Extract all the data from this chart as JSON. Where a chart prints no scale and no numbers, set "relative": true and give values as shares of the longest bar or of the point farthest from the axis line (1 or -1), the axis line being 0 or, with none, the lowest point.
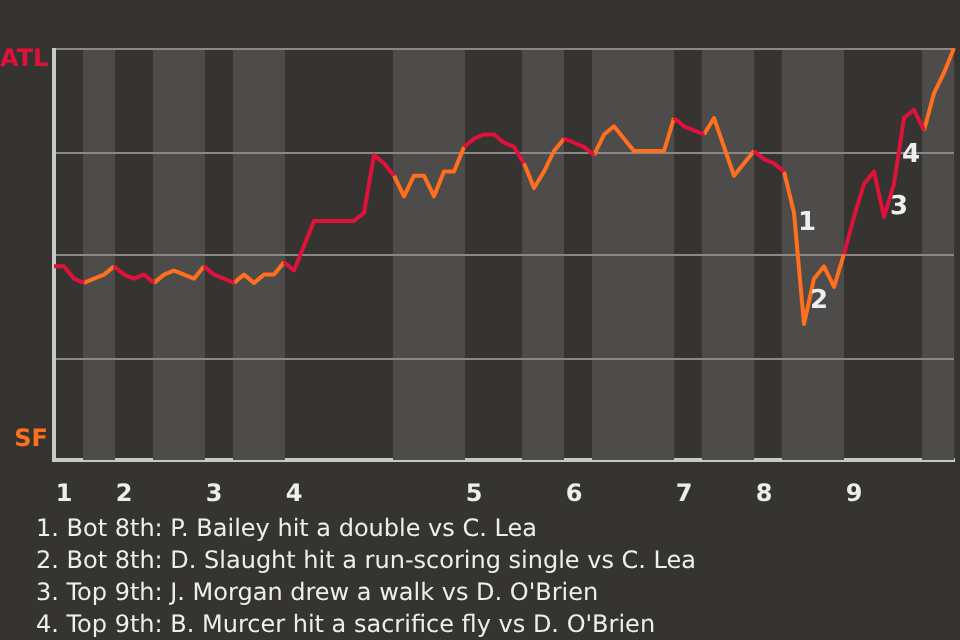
{
  "chart_data": {
    "type": "line",
    "relative": true,
    "categories": [
      null,
      "1",
      null,
      null,
      null,
      null,
      null,
      "2",
      null,
      null,
      null,
      null,
      null,
      null,
      null,
      null,
      "3",
      null,
      null,
      null,
      null,
      null,
      null,
      null,
      "4",
      null,
      null,
      null,
      null,
      null,
      null,
      null,
      null,
      null,
      null,
      null,
      null,
      null,
      null,
      null,
      null,
      null,
      "5",
      null,
      null,
      null,
      null,
      null,
      null,
      null,
      null,
      null,
      "6",
      null,
      null,
      null,
      null,
      null,
      null,
      null,
      null,
      null,
      null,
      "7",
      null,
      null,
      null,
      null,
      null,
      null,
      null,
      "8",
      null,
      null,
      null,
      null,
      null,
      null,
      null,
      null,
      "9",
      null,
      null,
      null,
      null,
      null,
      null,
      null,
      null,
      null,
      null
    ],
    "series": [
      {
        "color": "#e0123c",
        "values": [
          0.47,
          0.47,
          0.44,
          0.43,
          null,
          null,
          0.47,
          0.45,
          0.44,
          0.45,
          0.43,
          null,
          null,
          null,
          null,
          0.47,
          0.45,
          0.44,
          0.43,
          null,
          null,
          null,
          null,
          0.48,
          0.46,
          0.52,
          0.58,
          0.58,
          0.58,
          0.58,
          0.58,
          0.6,
          0.74,
          0.72,
          0.69,
          null,
          null,
          null,
          null,
          null,
          null,
          0.76,
          0.78,
          0.79,
          0.79,
          0.77,
          0.76,
          0.72,
          null,
          null,
          null,
          0.78,
          0.77,
          0.76,
          0.74,
          null,
          null,
          null,
          null,
          null,
          null,
          null,
          0.83,
          0.81,
          0.8,
          0.79,
          null,
          null,
          null,
          null,
          0.75,
          0.73,
          0.72,
          0.7,
          null,
          null,
          null,
          null,
          null,
          0.5,
          0.59,
          0.67,
          0.7,
          0.59,
          0.67,
          0.83,
          0.85,
          0.8,
          null,
          null,
          null
        ]
      },
      {
        "color": "#ff6f1e",
        "values": [
          null,
          null,
          null,
          0.43,
          0.44,
          0.45,
          0.47,
          null,
          null,
          null,
          0.43,
          0.45,
          0.46,
          0.45,
          0.44,
          0.47,
          null,
          null,
          0.43,
          0.45,
          0.43,
          0.45,
          0.45,
          0.48,
          null,
          null,
          null,
          null,
          null,
          null,
          null,
          null,
          null,
          null,
          0.69,
          0.64,
          0.69,
          0.69,
          0.64,
          0.7,
          0.7,
          0.76,
          null,
          null,
          null,
          null,
          null,
          0.72,
          0.66,
          0.7,
          0.75,
          0.78,
          null,
          null,
          0.74,
          0.79,
          0.81,
          0.78,
          0.75,
          0.75,
          0.75,
          0.75,
          0.83,
          null,
          null,
          0.79,
          0.83,
          0.76,
          0.69,
          0.72,
          0.75,
          null,
          null,
          0.7,
          0.6,
          0.33,
          0.44,
          0.47,
          0.42,
          0.5,
          null,
          null,
          null,
          null,
          null,
          null,
          null,
          0.8,
          0.89,
          0.94,
          1
        ]
      }
    ],
    "grid": "y",
    "annotations": [
      "ATL",
      "SF",
      "1",
      "2",
      "3",
      "4",
      "1. Bot 8th: P. Bailey hit a double vs C. Lea",
      "2. Bot 8th: D. Slaught hit a run-scoring single vs C. Lea",
      "3. Top 9th: J. Morgan drew a walk vs D. O'Brien",
      "4. Top 9th: B. Murcer hit a sacrifice fly vs D. O'Brien"
    ]
  }
}
